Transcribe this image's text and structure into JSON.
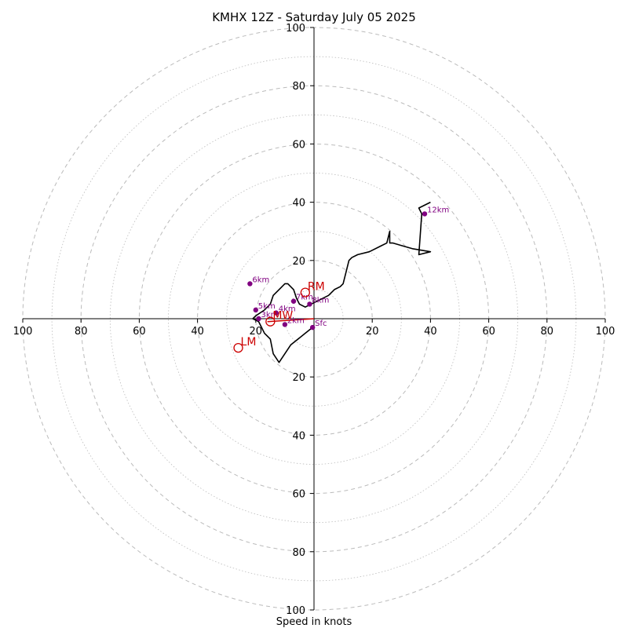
{
  "chart_data": {
    "type": "line",
    "title": "KMHX 12Z - Saturday July 05 2025",
    "xlabel": "Speed in knots",
    "axis_ticks": [
      "100",
      "80",
      "60",
      "40",
      "20",
      "20",
      "40",
      "60",
      "80",
      "100"
    ],
    "y_axis_ticks": [
      "100",
      "80",
      "60",
      "40",
      "20",
      "20",
      "40",
      "60",
      "80",
      "100"
    ],
    "xlim": [
      -100,
      100
    ],
    "ylim": [
      -100,
      100
    ],
    "rings": [
      10,
      20,
      30,
      40,
      50,
      60,
      70,
      80,
      90,
      100
    ],
    "grid": true,
    "colors": {
      "hodograph": "#000000",
      "height_markers": "#800080",
      "storm_motion": "#cc0000",
      "grid": "#bbbbbb",
      "axes": "#000000"
    },
    "series": [
      {
        "u": [
          -0.5,
          -3,
          -8,
          -10,
          -12,
          -14,
          -15,
          -17,
          -18,
          -19,
          -21,
          -20,
          -17,
          -15,
          -14,
          -12,
          -10,
          -9,
          -8,
          -7,
          -6,
          -5,
          -3,
          -1,
          1,
          3,
          5,
          7,
          9,
          10,
          11,
          12,
          13,
          15,
          19,
          23,
          25,
          26,
          26,
          27,
          34,
          40,
          36,
          37,
          36,
          40
        ],
        "v": [
          -3,
          -5,
          -9,
          -12,
          -15,
          -12,
          -7,
          -5,
          -3,
          -1,
          0,
          1,
          3,
          5,
          8,
          10,
          12,
          12,
          11,
          10,
          7,
          5,
          4,
          5,
          6,
          7,
          8,
          10,
          11,
          12,
          16,
          20,
          21,
          22,
          23,
          25,
          26,
          30,
          26,
          26,
          24,
          23,
          22,
          36,
          38,
          40
        ]
      }
    ],
    "height_markers": [
      {
        "label": "Sfc",
        "u": -0.5,
        "v": -3
      },
      {
        "label": "2km",
        "u": -10,
        "v": -2
      },
      {
        "label": "3km",
        "u": -19,
        "v": 0
      },
      {
        "label": "4km",
        "u": -13,
        "v": 2
      },
      {
        "label": "5km",
        "u": -20,
        "v": 3
      },
      {
        "label": "6km",
        "u": -22,
        "v": 12
      },
      {
        "label": "7km",
        "u": -7,
        "v": 6
      },
      {
        "label": "8km",
        "u": -1.5,
        "v": 5
      },
      {
        "label": "12km",
        "u": 38,
        "v": 36
      }
    ],
    "storm_motion": [
      {
        "label": "RM",
        "u": -3,
        "v": 9
      },
      {
        "label": "LM",
        "u": -26,
        "v": -10
      },
      {
        "label": "MW",
        "u": -15,
        "v": -1
      }
    ],
    "storm_motion_vector": {
      "u": [
        0,
        -16
      ],
      "v": [
        0,
        -1
      ]
    }
  }
}
